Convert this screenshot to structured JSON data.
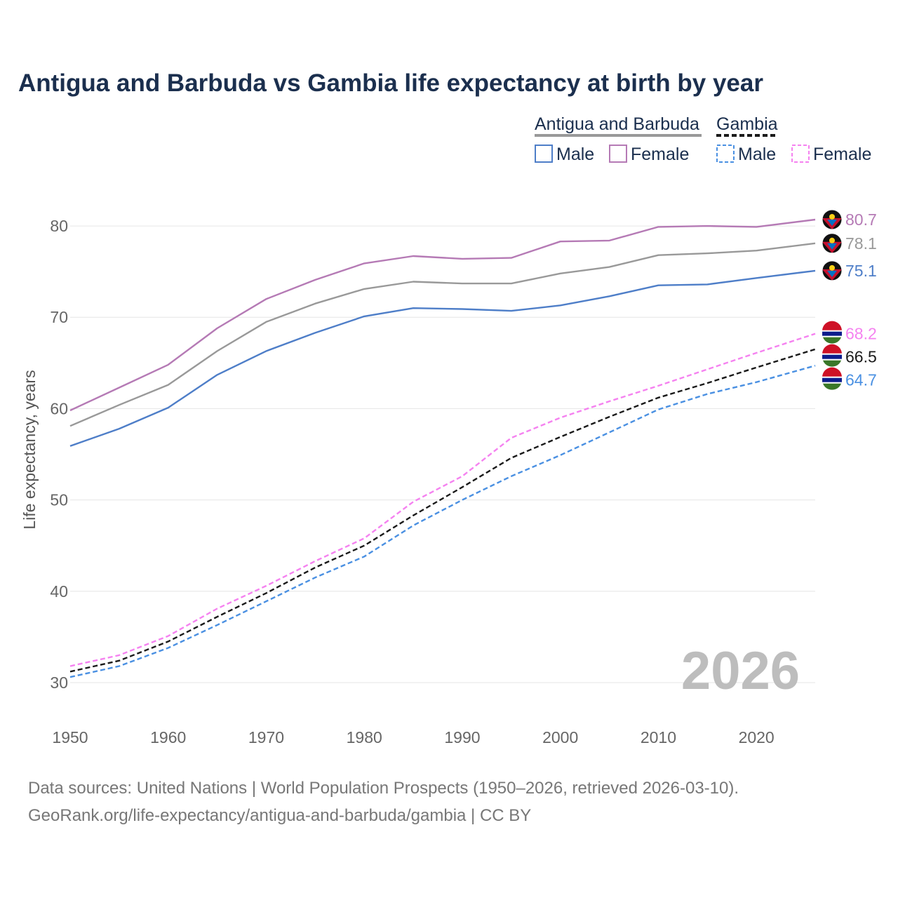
{
  "title": "Antigua and Barbuda vs Gambia life expectancy at birth by year",
  "legend": {
    "group1": "Antigua and Barbuda",
    "group2": "Gambia",
    "male": "Male",
    "female": "Female"
  },
  "year_watermark": "2026",
  "source_line1": "Data sources: United Nations | World Population Prospects (1950–2026, retrieved 2026-03-10).",
  "source_line2": "GeoRank.org/life-expectancy/antigua-and-barbuda/gambia | CC BY",
  "colors": {
    "male": "#4e7ec8",
    "female": "#b57ab5",
    "total_ab": "#999999",
    "gm_male": "#4a90e2",
    "gm_female": "#f582f0",
    "gm_total": "#1a1a1a"
  },
  "chart_data": {
    "type": "line",
    "title": "Antigua and Barbuda vs Gambia life expectancy at birth by year",
    "xlabel": "",
    "ylabel": "Life expectancy, years",
    "xlim": [
      1950,
      2026
    ],
    "ylim": [
      27,
      84
    ],
    "x_ticks": [
      1950,
      1960,
      1970,
      1980,
      1990,
      2000,
      2010,
      2020
    ],
    "y_ticks": [
      30,
      40,
      50,
      60,
      70,
      80
    ],
    "grid": true,
    "legend_position": "top-right",
    "x": [
      1950,
      1955,
      1960,
      1965,
      1970,
      1975,
      1980,
      1985,
      1990,
      1995,
      2000,
      2005,
      2010,
      2015,
      2020,
      2026
    ],
    "series": [
      {
        "name": "Antigua and Barbuda Female",
        "country": "Antigua and Barbuda",
        "sex": "Female",
        "style": "solid",
        "color": "#b57ab5",
        "values": [
          59.8,
          62.3,
          64.8,
          68.8,
          72.0,
          74.1,
          75.9,
          76.7,
          76.4,
          76.5,
          78.3,
          78.4,
          79.9,
          80.0,
          79.9,
          80.7
        ],
        "end_label": "80.7"
      },
      {
        "name": "Antigua and Barbuda Total",
        "country": "Antigua and Barbuda",
        "sex": "Total",
        "style": "solid",
        "color": "#999999",
        "values": [
          58.1,
          60.4,
          62.6,
          66.3,
          69.5,
          71.5,
          73.1,
          73.9,
          73.7,
          73.7,
          74.8,
          75.5,
          76.8,
          77.0,
          77.3,
          78.1
        ],
        "end_label": "78.1"
      },
      {
        "name": "Antigua and Barbuda Male",
        "country": "Antigua and Barbuda",
        "sex": "Male",
        "style": "solid",
        "color": "#4e7ec8",
        "values": [
          55.9,
          57.8,
          60.1,
          63.7,
          66.3,
          68.3,
          70.1,
          71.0,
          70.9,
          70.7,
          71.3,
          72.3,
          73.5,
          73.6,
          74.3,
          75.1
        ],
        "end_label": "75.1"
      },
      {
        "name": "Gambia Female",
        "country": "Gambia",
        "sex": "Female",
        "style": "dashed",
        "color": "#f582f0",
        "values": [
          31.8,
          33.0,
          35.1,
          38.1,
          40.6,
          43.3,
          45.8,
          49.8,
          52.6,
          56.8,
          59.0,
          60.8,
          62.5,
          64.3,
          66.1,
          68.2
        ],
        "end_label": "68.2"
      },
      {
        "name": "Gambia Total",
        "country": "Gambia",
        "sex": "Total",
        "style": "dashed",
        "color": "#1a1a1a",
        "values": [
          31.2,
          32.4,
          34.5,
          37.2,
          39.8,
          42.6,
          45.0,
          48.3,
          51.4,
          54.6,
          56.9,
          59.1,
          61.2,
          62.8,
          64.5,
          66.5
        ],
        "end_label": "66.5"
      },
      {
        "name": "Gambia Male",
        "country": "Gambia",
        "sex": "Male",
        "style": "dashed",
        "color": "#4a90e2",
        "values": [
          30.6,
          31.8,
          33.8,
          36.3,
          38.9,
          41.5,
          43.8,
          47.2,
          50.0,
          52.6,
          54.9,
          57.4,
          59.9,
          61.6,
          62.9,
          64.7
        ],
        "end_label": "64.7"
      }
    ]
  }
}
